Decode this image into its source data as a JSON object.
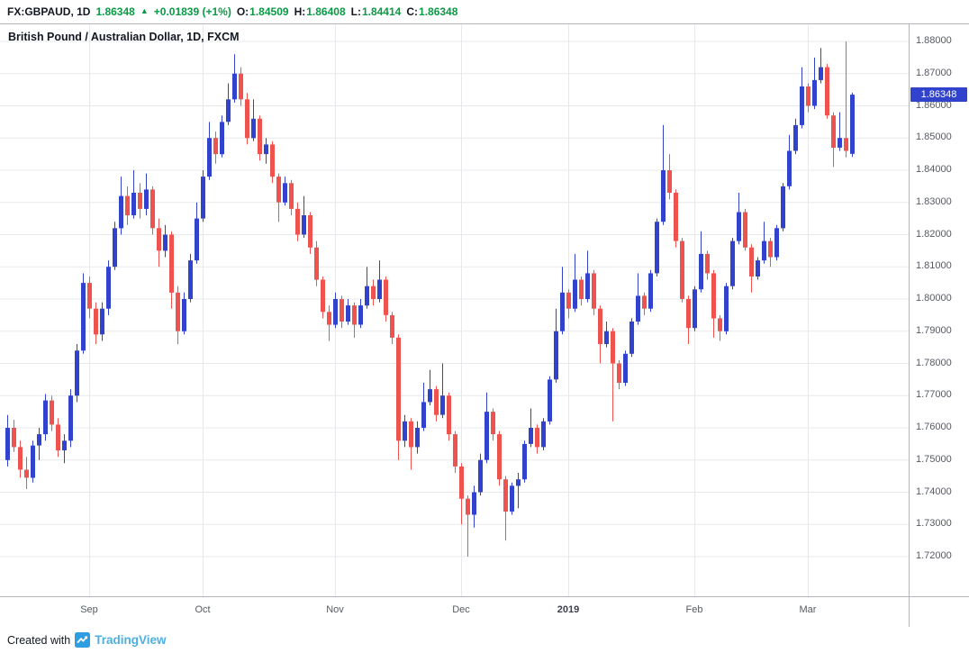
{
  "header": {
    "symbol": "FX:GBPAUD, 1D",
    "last": "1.86348",
    "arrow": "▲",
    "change": "+0.01839 (+1%)",
    "ohlc": [
      {
        "label": "O:",
        "value": "1.84509"
      },
      {
        "label": "H:",
        "value": "1.86408"
      },
      {
        "label": "L:",
        "value": "1.84414"
      },
      {
        "label": "C:",
        "value": "1.86348"
      }
    ]
  },
  "legend": {
    "text": "British Pound / Australian Dollar, 1D, FXCM"
  },
  "footer": {
    "created_with": "Created with",
    "brand": "TradingView"
  },
  "price_axis": {
    "min": 1.72,
    "max": 1.88,
    "step": 0.01,
    "decimals": 5,
    "last_price": 1.86348,
    "last_label": "1.86348"
  },
  "colors": {
    "up": "#3143cd",
    "down": "#ef5350",
    "grid": "#e7e8ec",
    "green": "#0a9a46",
    "label_bg": "#3143cd",
    "wordmark": "#4cb0e2",
    "axis_text": "#555a63"
  },
  "chart_data": {
    "type": "candlestick",
    "title": "British Pound / Australian Dollar, 1D, FXCM",
    "symbol": "FX:GBPAUD",
    "timeframe": "1D",
    "source": "FXCM",
    "y_range": [
      1.72,
      1.88
    ],
    "y_tick_step": 0.01,
    "grid": true,
    "x_axis": {
      "ticks": [
        {
          "index": 13,
          "label": "Sep"
        },
        {
          "index": 31,
          "label": "Oct"
        },
        {
          "index": 52,
          "label": "Nov"
        },
        {
          "index": 72,
          "label": "Dec"
        },
        {
          "index": 89,
          "label": "2019",
          "major": true
        },
        {
          "index": 109,
          "label": "Feb"
        },
        {
          "index": 127,
          "label": "Mar"
        }
      ]
    },
    "ohlc_note": "approximate daily [open,high,low,close] read from chart; final candle exact per readout",
    "ohlc": [
      [
        1.75,
        1.764,
        1.748,
        1.76
      ],
      [
        1.76,
        1.7625,
        1.7525,
        1.754
      ],
      [
        1.754,
        1.756,
        1.7445,
        1.747
      ],
      [
        1.747,
        1.751,
        1.741,
        1.7445
      ],
      [
        1.7445,
        1.756,
        1.743,
        1.7545
      ],
      [
        1.7545,
        1.76,
        1.75,
        1.758
      ],
      [
        1.758,
        1.7705,
        1.756,
        1.7685
      ],
      [
        1.7685,
        1.77,
        1.759,
        1.761
      ],
      [
        1.761,
        1.763,
        1.751,
        1.753
      ],
      [
        1.753,
        1.758,
        1.749,
        1.756
      ],
      [
        1.756,
        1.772,
        1.754,
        1.77
      ],
      [
        1.77,
        1.786,
        1.768,
        1.784
      ],
      [
        1.784,
        1.808,
        1.783,
        1.805
      ],
      [
        1.805,
        1.807,
        1.794,
        1.797
      ],
      [
        1.797,
        1.799,
        1.786,
        1.789
      ],
      [
        1.789,
        1.799,
        1.787,
        1.797
      ],
      [
        1.797,
        1.812,
        1.795,
        1.81
      ],
      [
        1.81,
        1.824,
        1.809,
        1.822
      ],
      [
        1.822,
        1.838,
        1.82,
        1.832
      ],
      [
        1.832,
        1.835,
        1.823,
        1.826
      ],
      [
        1.826,
        1.84,
        1.825,
        1.833
      ],
      [
        1.833,
        1.836,
        1.825,
        1.828
      ],
      [
        1.828,
        1.839,
        1.826,
        1.834
      ],
      [
        1.834,
        1.835,
        1.82,
        1.822
      ],
      [
        1.822,
        1.825,
        1.81,
        1.815
      ],
      [
        1.815,
        1.823,
        1.813,
        1.82
      ],
      [
        1.82,
        1.821,
        1.797,
        1.802
      ],
      [
        1.802,
        1.804,
        1.786,
        1.79
      ],
      [
        1.79,
        1.802,
        1.789,
        1.8
      ],
      [
        1.8,
        1.814,
        1.799,
        1.812
      ],
      [
        1.812,
        1.83,
        1.811,
        1.825
      ],
      [
        1.825,
        1.84,
        1.824,
        1.838
      ],
      [
        1.838,
        1.855,
        1.837,
        1.85
      ],
      [
        1.85,
        1.852,
        1.842,
        1.845
      ],
      [
        1.845,
        1.857,
        1.844,
        1.855
      ],
      [
        1.855,
        1.867,
        1.854,
        1.862
      ],
      [
        1.862,
        1.876,
        1.861,
        1.87
      ],
      [
        1.87,
        1.872,
        1.86,
        1.862
      ],
      [
        1.862,
        1.864,
        1.848,
        1.85
      ],
      [
        1.85,
        1.862,
        1.849,
        1.856
      ],
      [
        1.856,
        1.857,
        1.843,
        1.845
      ],
      [
        1.845,
        1.85,
        1.842,
        1.848
      ],
      [
        1.848,
        1.849,
        1.836,
        1.838
      ],
      [
        1.838,
        1.839,
        1.824,
        1.83
      ],
      [
        1.83,
        1.838,
        1.829,
        1.836
      ],
      [
        1.836,
        1.837,
        1.826,
        1.828
      ],
      [
        1.828,
        1.83,
        1.818,
        1.82
      ],
      [
        1.82,
        1.832,
        1.819,
        1.826
      ],
      [
        1.826,
        1.827,
        1.814,
        1.816
      ],
      [
        1.816,
        1.818,
        1.804,
        1.806
      ],
      [
        1.806,
        1.807,
        1.794,
        1.796
      ],
      [
        1.796,
        1.798,
        1.787,
        1.792
      ],
      [
        1.792,
        1.802,
        1.791,
        1.8
      ],
      [
        1.8,
        1.801,
        1.791,
        1.793
      ],
      [
        1.793,
        1.8,
        1.792,
        1.798
      ],
      [
        1.798,
        1.799,
        1.788,
        1.792
      ],
      [
        1.792,
        1.8,
        1.791,
        1.798
      ],
      [
        1.798,
        1.81,
        1.797,
        1.804
      ],
      [
        1.804,
        1.806,
        1.798,
        1.8
      ],
      [
        1.8,
        1.812,
        1.799,
        1.806
      ],
      [
        1.806,
        1.807,
        1.793,
        1.795
      ],
      [
        1.795,
        1.796,
        1.786,
        1.788
      ],
      [
        1.788,
        1.789,
        1.75,
        1.756
      ],
      [
        1.756,
        1.764,
        1.754,
        1.762
      ],
      [
        1.762,
        1.763,
        1.747,
        1.754
      ],
      [
        1.754,
        1.762,
        1.752,
        1.76
      ],
      [
        1.76,
        1.774,
        1.759,
        1.768
      ],
      [
        1.768,
        1.778,
        1.767,
        1.772
      ],
      [
        1.772,
        1.773,
        1.762,
        1.764
      ],
      [
        1.764,
        1.78,
        1.763,
        1.77
      ],
      [
        1.77,
        1.771,
        1.756,
        1.758
      ],
      [
        1.758,
        1.759,
        1.746,
        1.748
      ],
      [
        1.748,
        1.749,
        1.73,
        1.738
      ],
      [
        1.738,
        1.739,
        1.72,
        1.733
      ],
      [
        1.733,
        1.742,
        1.729,
        1.74
      ],
      [
        1.74,
        1.752,
        1.739,
        1.75
      ],
      [
        1.75,
        1.771,
        1.749,
        1.765
      ],
      [
        1.765,
        1.766,
        1.756,
        1.758
      ],
      [
        1.758,
        1.759,
        1.742,
        1.744
      ],
      [
        1.744,
        1.745,
        1.725,
        1.734
      ],
      [
        1.734,
        1.743,
        1.733,
        1.742
      ],
      [
        1.742,
        1.746,
        1.735,
        1.744
      ],
      [
        1.744,
        1.756,
        1.743,
        1.755
      ],
      [
        1.755,
        1.766,
        1.754,
        1.76
      ],
      [
        1.76,
        1.761,
        1.752,
        1.754
      ],
      [
        1.754,
        1.763,
        1.753,
        1.762
      ],
      [
        1.762,
        1.776,
        1.761,
        1.775
      ],
      [
        1.775,
        1.797,
        1.774,
        1.79
      ],
      [
        1.79,
        1.81,
        1.789,
        1.802
      ],
      [
        1.802,
        1.803,
        1.794,
        1.797
      ],
      [
        1.797,
        1.814,
        1.796,
        1.806
      ],
      [
        1.806,
        1.807,
        1.798,
        1.8
      ],
      [
        1.8,
        1.815,
        1.799,
        1.808
      ],
      [
        1.808,
        1.809,
        1.795,
        1.797
      ],
      [
        1.797,
        1.798,
        1.78,
        1.786
      ],
      [
        1.786,
        1.793,
        1.785,
        1.79
      ],
      [
        1.79,
        1.791,
        1.762,
        1.78
      ],
      [
        1.78,
        1.781,
        1.772,
        1.774
      ],
      [
        1.774,
        1.784,
        1.773,
        1.783
      ],
      [
        1.783,
        1.794,
        1.782,
        1.793
      ],
      [
        1.793,
        1.808,
        1.792,
        1.801
      ],
      [
        1.801,
        1.802,
        1.795,
        1.797
      ],
      [
        1.797,
        1.809,
        1.796,
        1.808
      ],
      [
        1.808,
        1.825,
        1.807,
        1.824
      ],
      [
        1.824,
        1.854,
        1.823,
        1.84
      ],
      [
        1.84,
        1.845,
        1.831,
        1.833
      ],
      [
        1.833,
        1.834,
        1.816,
        1.818
      ],
      [
        1.818,
        1.819,
        1.799,
        1.8
      ],
      [
        1.8,
        1.801,
        1.786,
        1.791
      ],
      [
        1.791,
        1.804,
        1.79,
        1.803
      ],
      [
        1.803,
        1.821,
        1.802,
        1.814
      ],
      [
        1.814,
        1.815,
        1.806,
        1.808
      ],
      [
        1.808,
        1.809,
        1.788,
        1.794
      ],
      [
        1.794,
        1.795,
        1.787,
        1.79
      ],
      [
        1.79,
        1.805,
        1.789,
        1.804
      ],
      [
        1.804,
        1.819,
        1.803,
        1.818
      ],
      [
        1.818,
        1.833,
        1.817,
        1.827
      ],
      [
        1.827,
        1.828,
        1.815,
        1.816
      ],
      [
        1.816,
        1.817,
        1.802,
        1.807
      ],
      [
        1.807,
        1.813,
        1.806,
        1.812
      ],
      [
        1.812,
        1.824,
        1.811,
        1.818
      ],
      [
        1.818,
        1.819,
        1.81,
        1.813
      ],
      [
        1.813,
        1.823,
        1.812,
        1.822
      ],
      [
        1.822,
        1.836,
        1.821,
        1.835
      ],
      [
        1.835,
        1.851,
        1.834,
        1.846
      ],
      [
        1.846,
        1.856,
        1.845,
        1.854
      ],
      [
        1.854,
        1.872,
        1.853,
        1.866
      ],
      [
        1.866,
        1.867,
        1.858,
        1.86
      ],
      [
        1.86,
        1.875,
        1.859,
        1.868
      ],
      [
        1.868,
        1.878,
        1.867,
        1.872
      ],
      [
        1.872,
        1.873,
        1.856,
        1.857
      ],
      [
        1.857,
        1.858,
        1.841,
        1.847
      ],
      [
        1.847,
        1.858,
        1.846,
        1.85
      ],
      [
        1.85,
        1.88,
        1.844,
        1.846
      ],
      [
        1.84509,
        1.86408,
        1.84414,
        1.86348
      ]
    ]
  }
}
